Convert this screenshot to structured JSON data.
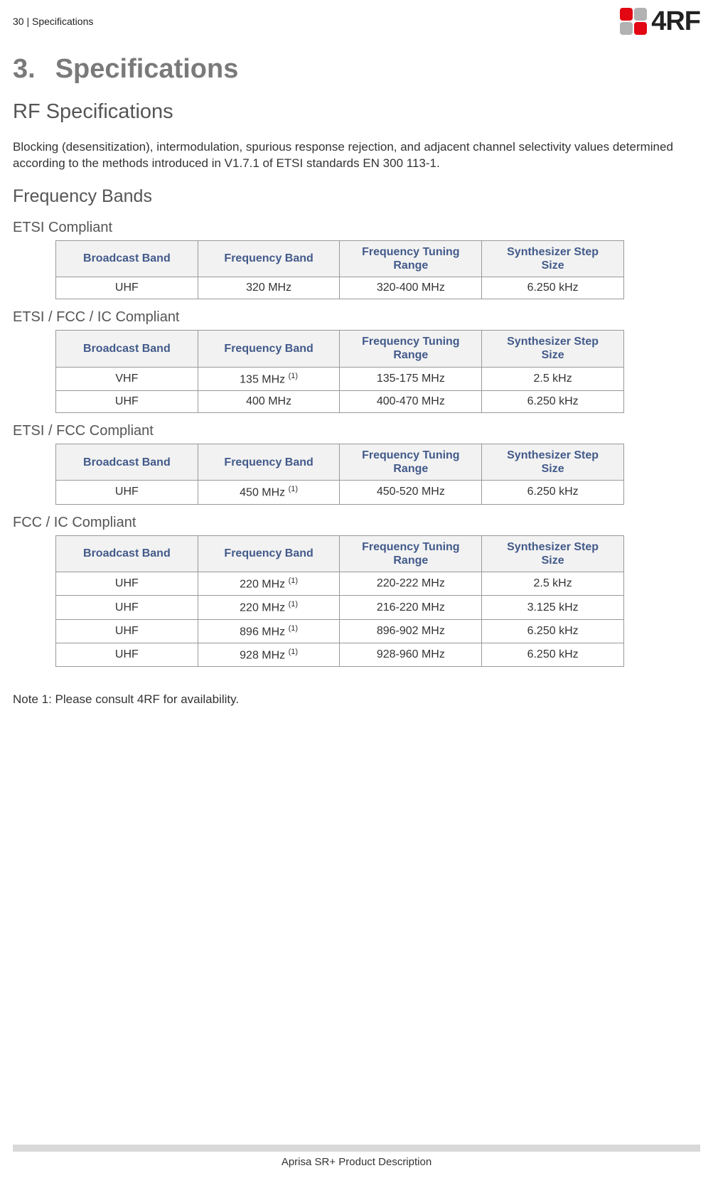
{
  "pageHeader": {
    "left": "30  |  Specifications",
    "logoText": "4RF"
  },
  "chapter": {
    "number": "3.",
    "title": "Specifications"
  },
  "section": "RF Specifications",
  "intro": "Blocking (desensitization), intermodulation, spurious response rejection, and adjacent channel selectivity values determined according to the methods introduced in V1.7.1 of ETSI standards EN 300 113-1.",
  "freqBandsHeading": "Frequency Bands",
  "tableHeaders": {
    "c1": "Broadcast Band",
    "c2": "Frequency Band",
    "c3a": "Frequency Tuning",
    "c3b": "Range",
    "c4a": "Synthesizer Step",
    "c4b": "Size"
  },
  "tables": [
    {
      "title": "ETSI Compliant",
      "rows": [
        {
          "band": "UHF",
          "freq": "320 MHz",
          "sup": "",
          "range": "320-400 MHz",
          "step": "6.250 kHz"
        }
      ]
    },
    {
      "title": "ETSI / FCC / IC Compliant",
      "rows": [
        {
          "band": "VHF",
          "freq": "135 MHz ",
          "sup": "(1)",
          "range": "135-175 MHz",
          "step": "2.5 kHz"
        },
        {
          "band": "UHF",
          "freq": "400 MHz",
          "sup": "",
          "range": "400-470 MHz",
          "step": "6.250 kHz"
        }
      ]
    },
    {
      "title": "ETSI / FCC Compliant",
      "rows": [
        {
          "band": "UHF",
          "freq": "450 MHz ",
          "sup": "(1)",
          "range": "450-520 MHz",
          "step": "6.250 kHz"
        }
      ]
    },
    {
      "title": "FCC / IC Compliant",
      "rows": [
        {
          "band": "UHF",
          "freq": "220 MHz ",
          "sup": "(1)",
          "range": "220-222 MHz",
          "step": "2.5 kHz"
        },
        {
          "band": "UHF",
          "freq": "220 MHz ",
          "sup": "(1)",
          "range": "216-220 MHz",
          "step": "3.125 kHz"
        },
        {
          "band": "UHF",
          "freq": "896 MHz ",
          "sup": "(1)",
          "range": "896-902 MHz",
          "step": "6.250 kHz"
        },
        {
          "band": "UHF",
          "freq": "928 MHz ",
          "sup": "(1)",
          "range": "928-960 MHz",
          "step": "6.250 kHz"
        }
      ]
    }
  ],
  "note": "Note 1: Please consult 4RF for availability.",
  "footer": "Aprisa SR+ Product Description"
}
